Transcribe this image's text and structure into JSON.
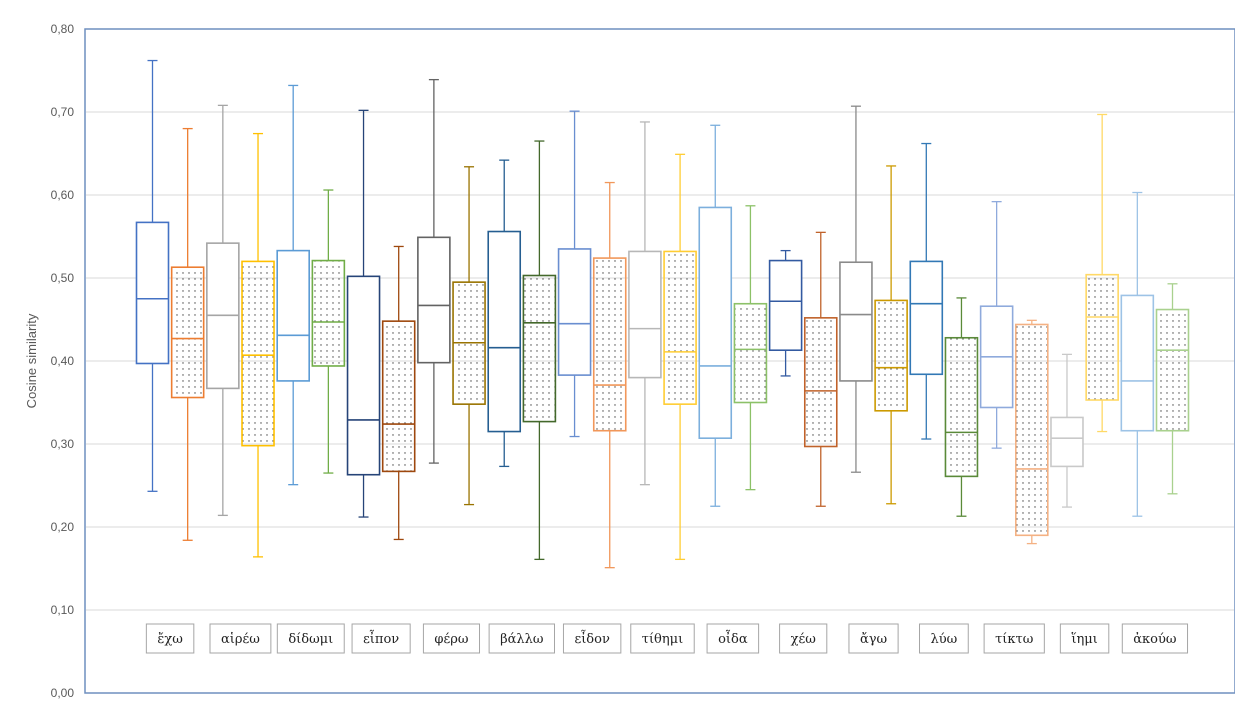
{
  "chart_data": {
    "type": "boxplot",
    "ylabel": "Cosine similarity",
    "ylim": [
      0,
      0.8
    ],
    "yticks": [
      "0,00",
      "0,10",
      "0,20",
      "0,30",
      "0,40",
      "0,50",
      "0,60",
      "0,70",
      "0,80"
    ],
    "grid": true,
    "categories": [
      "ἔχω",
      "αἱρέω",
      "δίδωμι",
      "εἶπον",
      "φέρω",
      "βάλλω",
      "εἶδον",
      "τίθημι",
      "οἶδα",
      "χέω",
      "ἄγω",
      "λύω",
      "τίκτω",
      "ἵημι",
      "ἀκούω"
    ],
    "series": [
      {
        "name": "ἔχω",
        "pattern": "plain",
        "min": 0.243,
        "q1": 0.397,
        "median": 0.475,
        "q3": 0.567,
        "max": 0.762
      },
      {
        "name": "ἔχω",
        "pattern": "dotted",
        "min": 0.184,
        "q1": 0.356,
        "median": 0.427,
        "q3": 0.513,
        "max": 0.68
      },
      {
        "name": "αἱρέω",
        "pattern": "plain",
        "min": 0.214,
        "q1": 0.367,
        "median": 0.455,
        "q3": 0.542,
        "max": 0.708
      },
      {
        "name": "αἱρέω",
        "pattern": "dotted",
        "min": 0.164,
        "q1": 0.298,
        "median": 0.407,
        "q3": 0.52,
        "max": 0.674
      },
      {
        "name": "δίδωμι",
        "pattern": "plain",
        "min": 0.251,
        "q1": 0.376,
        "median": 0.431,
        "q3": 0.533,
        "max": 0.732
      },
      {
        "name": "δίδωμι",
        "pattern": "dotted",
        "min": 0.265,
        "q1": 0.394,
        "median": 0.447,
        "q3": 0.521,
        "max": 0.606
      },
      {
        "name": "εἶπον",
        "pattern": "plain",
        "min": 0.212,
        "q1": 0.263,
        "median": 0.329,
        "q3": 0.502,
        "max": 0.702
      },
      {
        "name": "εἶπον",
        "pattern": "dotted",
        "min": 0.185,
        "q1": 0.267,
        "median": 0.324,
        "q3": 0.448,
        "max": 0.538
      },
      {
        "name": "φέρω",
        "pattern": "plain",
        "min": 0.277,
        "q1": 0.398,
        "median": 0.467,
        "q3": 0.549,
        "max": 0.739
      },
      {
        "name": "φέρω",
        "pattern": "dotted",
        "min": 0.227,
        "q1": 0.348,
        "median": 0.422,
        "q3": 0.495,
        "max": 0.634
      },
      {
        "name": "βάλλω",
        "pattern": "plain",
        "min": 0.273,
        "q1": 0.315,
        "median": 0.416,
        "q3": 0.556,
        "max": 0.642
      },
      {
        "name": "βάλλω",
        "pattern": "dotted",
        "min": 0.161,
        "q1": 0.327,
        "median": 0.446,
        "q3": 0.503,
        "max": 0.665
      },
      {
        "name": "εἶδον",
        "pattern": "plain",
        "min": 0.309,
        "q1": 0.383,
        "median": 0.445,
        "q3": 0.535,
        "max": 0.701
      },
      {
        "name": "εἶδον",
        "pattern": "dotted",
        "min": 0.151,
        "q1": 0.316,
        "median": 0.371,
        "q3": 0.524,
        "max": 0.615
      },
      {
        "name": "τίθημι",
        "pattern": "plain",
        "min": 0.251,
        "q1": 0.38,
        "median": 0.439,
        "q3": 0.532,
        "max": 0.688
      },
      {
        "name": "τίθημι",
        "pattern": "dotted",
        "min": 0.161,
        "q1": 0.348,
        "median": 0.411,
        "q3": 0.532,
        "max": 0.649
      },
      {
        "name": "οἶδα",
        "pattern": "plain",
        "min": 0.225,
        "q1": 0.307,
        "median": 0.394,
        "q3": 0.585,
        "max": 0.684
      },
      {
        "name": "οἶδα",
        "pattern": "dotted",
        "min": 0.245,
        "q1": 0.35,
        "median": 0.414,
        "q3": 0.469,
        "max": 0.587
      },
      {
        "name": "χέω",
        "pattern": "plain",
        "min": 0.382,
        "q1": 0.413,
        "median": 0.472,
        "q3": 0.521,
        "max": 0.533
      },
      {
        "name": "χέω",
        "pattern": "dotted",
        "min": 0.225,
        "q1": 0.297,
        "median": 0.364,
        "q3": 0.452,
        "max": 0.555
      },
      {
        "name": "ἄγω",
        "pattern": "plain",
        "min": 0.266,
        "q1": 0.376,
        "median": 0.456,
        "q3": 0.519,
        "max": 0.707
      },
      {
        "name": "ἄγω",
        "pattern": "dotted",
        "min": 0.228,
        "q1": 0.34,
        "median": 0.392,
        "q3": 0.473,
        "max": 0.635
      },
      {
        "name": "λύω",
        "pattern": "plain",
        "min": 0.306,
        "q1": 0.384,
        "median": 0.469,
        "q3": 0.52,
        "max": 0.662
      },
      {
        "name": "λύω",
        "pattern": "dotted",
        "min": 0.213,
        "q1": 0.261,
        "median": 0.314,
        "q3": 0.428,
        "max": 0.476
      },
      {
        "name": "τίκτω",
        "pattern": "plain",
        "min": 0.295,
        "q1": 0.344,
        "median": 0.405,
        "q3": 0.466,
        "max": 0.592
      },
      {
        "name": "τίκτω",
        "pattern": "dotted",
        "min": 0.18,
        "q1": 0.19,
        "median": 0.27,
        "q3": 0.444,
        "max": 0.449
      },
      {
        "name": "ἵημι",
        "pattern": "plain",
        "min": 0.224,
        "q1": 0.273,
        "median": 0.307,
        "q3": 0.332,
        "max": 0.408
      },
      {
        "name": "ἵημι",
        "pattern": "dotted",
        "min": 0.315,
        "q1": 0.353,
        "median": 0.453,
        "q3": 0.504,
        "max": 0.697
      },
      {
        "name": "ἀκούω",
        "pattern": "plain",
        "min": 0.213,
        "q1": 0.316,
        "median": 0.376,
        "q3": 0.479,
        "max": 0.603
      },
      {
        "name": "ἀκούω",
        "pattern": "dotted",
        "min": 0.24,
        "q1": 0.316,
        "median": 0.413,
        "q3": 0.462,
        "max": 0.493
      }
    ],
    "colors": [
      "#4472C4",
      "#ED7D31",
      "#A5A5A5",
      "#FFC000",
      "#5B9BD5",
      "#70AD47",
      "#264478",
      "#9E480E",
      "#636363",
      "#997300",
      "#255E91",
      "#43682B",
      "#698ED0",
      "#F1975A",
      "#B7B7B7",
      "#FFCD33",
      "#7CAFDD",
      "#8CC168",
      "#335AA1",
      "#C0622A",
      "#8A8A8A",
      "#CC9A00",
      "#3278B5",
      "#5A8A39",
      "#8FAADC",
      "#F4B183",
      "#C9C9C9",
      "#FFD966",
      "#9DC3E6",
      "#A9D18E"
    ]
  }
}
